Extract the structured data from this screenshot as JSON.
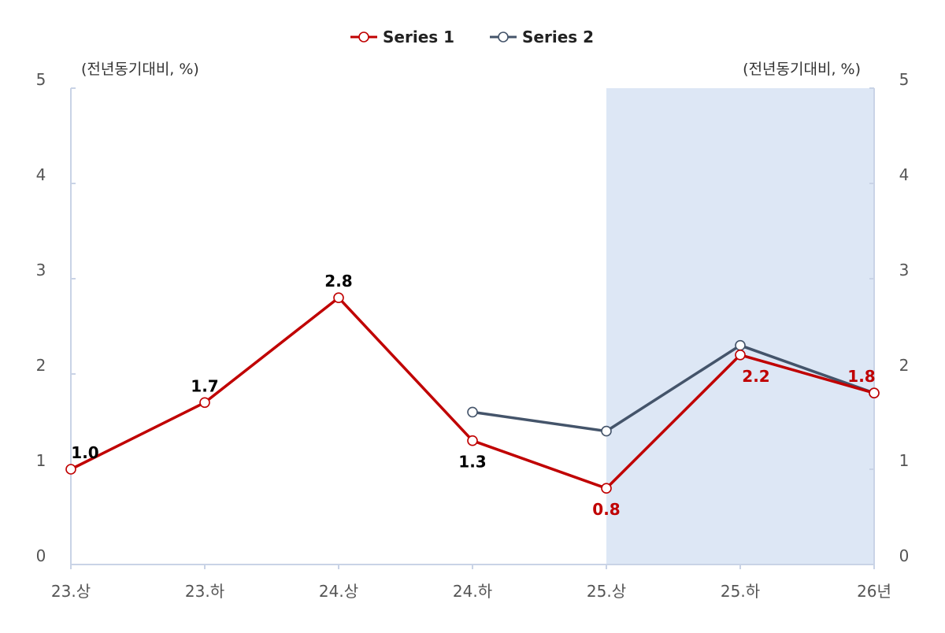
{
  "chart_data": {
    "type": "line",
    "categories": [
      "23.상",
      "23.하",
      "24.상",
      "24.하",
      "25.상",
      "25.하",
      "26년"
    ],
    "series": [
      {
        "name": "Series 1",
        "values": [
          1.0,
          1.7,
          2.8,
          1.3,
          0.8,
          2.2,
          1.8
        ],
        "labels": [
          "1.0",
          "1.7",
          "2.8",
          "1.3",
          "0.8",
          "2.2",
          "1.8"
        ],
        "label_colors": [
          "#000000",
          "#000000",
          "#000000",
          "#000000",
          "#c00000",
          "#c00000",
          "#c00000"
        ],
        "color": "#c00000"
      },
      {
        "name": "Series 2",
        "values": [
          null,
          null,
          null,
          1.6,
          1.4,
          2.3,
          1.8
        ],
        "color": "#44546a"
      }
    ],
    "ylim": [
      0,
      5
    ],
    "y_ticks": [
      "0",
      "1",
      "2",
      "3",
      "4",
      "5"
    ],
    "y_unit_left": "(전년동기대비, %)",
    "y_unit_right": "(전년동기대비, %)",
    "highlight_range": [
      "25.상",
      "26년"
    ],
    "highlight_color": "#dde7f5",
    "legend_position": "top-center",
    "grid": false
  }
}
